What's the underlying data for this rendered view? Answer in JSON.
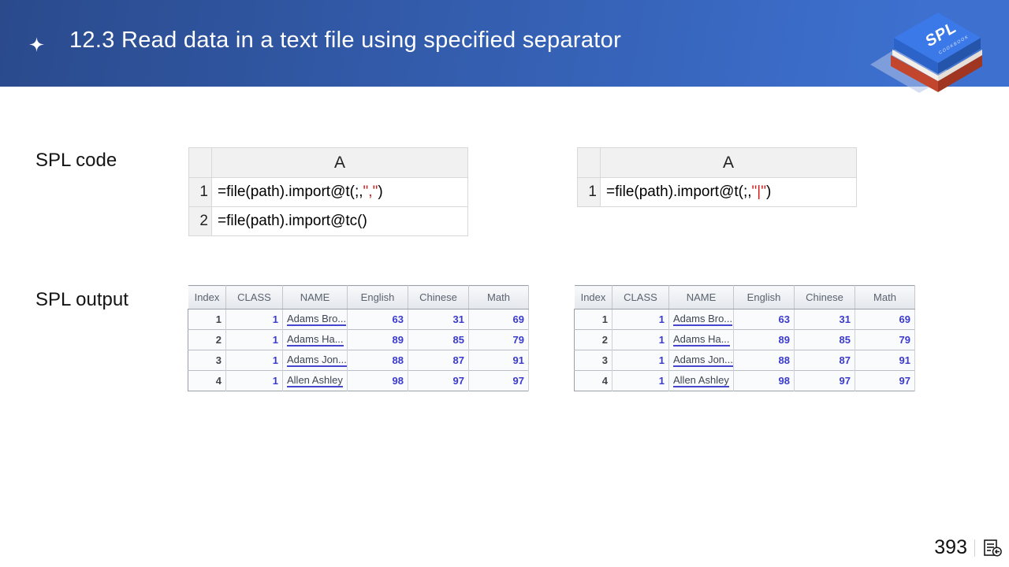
{
  "header": {
    "title": "12.3 Read data in a text file using specified separator",
    "bullet_icon": "four-pointed-star",
    "logo": {
      "title": "SPL",
      "subtitle": "COOKBOOK"
    }
  },
  "labels": {
    "code": "SPL code",
    "output": "SPL output"
  },
  "colors": {
    "header_grad_start": "#2a4a8c",
    "header_grad_end": "#3d70cf",
    "code_red": "#d21f1f",
    "table_number_blue": "#3a3ace",
    "logo_blue": "#3b79e9",
    "logo_red": "#c2452e"
  },
  "code_tables": [
    {
      "column_header": "A",
      "rows": [
        {
          "num": "1",
          "pre": "=file(path).import@t(;,",
          "highlight": "\",\"",
          "post": ")"
        },
        {
          "num": "2",
          "pre": "=file(path).import@tc()",
          "highlight": "",
          "post": ""
        }
      ]
    },
    {
      "column_header": "A",
      "rows": [
        {
          "num": "1",
          "pre": "=file(path).import@t(;,",
          "highlight": "\"|\"",
          "post": ")"
        }
      ]
    }
  ],
  "output_tables": [
    {
      "headers": [
        "Index",
        "CLASS",
        "NAME",
        "English",
        "Chinese",
        "Math"
      ],
      "rows": [
        [
          "1",
          "1",
          "Adams Bro...",
          "63",
          "31",
          "69"
        ],
        [
          "2",
          "1",
          "Adams Ha...",
          "89",
          "85",
          "79"
        ],
        [
          "3",
          "1",
          "Adams Jon...",
          "88",
          "87",
          "91"
        ],
        [
          "4",
          "1",
          "Allen Ashley",
          "98",
          "97",
          "97"
        ]
      ]
    },
    {
      "headers": [
        "Index",
        "CLASS",
        "NAME",
        "English",
        "Chinese",
        "Math"
      ],
      "rows": [
        [
          "1",
          "1",
          "Adams Bro...",
          "63",
          "31",
          "69"
        ],
        [
          "2",
          "1",
          "Adams Ha...",
          "89",
          "85",
          "79"
        ],
        [
          "3",
          "1",
          "Adams Jon...",
          "88",
          "87",
          "91"
        ],
        [
          "4",
          "1",
          "Allen Ashley",
          "98",
          "97",
          "97"
        ]
      ]
    }
  ],
  "footer": {
    "page_number": "393",
    "icon": "back-to-contents"
  }
}
